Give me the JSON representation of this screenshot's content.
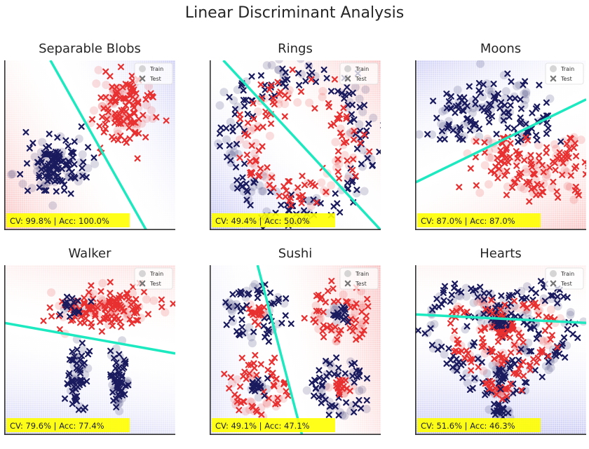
{
  "suptitle": "Linear Discriminant Analysis",
  "legend": {
    "train": "Train",
    "test": "Test"
  },
  "colors": {
    "class0": "#1a1a5e",
    "class1": "#e83030",
    "boundary": "#1de9c0",
    "region0": "#3a3ad8",
    "region1": "#f02a2a",
    "score_box": "#ffff00"
  },
  "chart_data": [
    {
      "type": "scatter",
      "title": "Separable Blobs",
      "score": "CV: 99.8% | Acc: 100.0%",
      "xlim": [
        0,
        1
      ],
      "ylim": [
        0,
        1
      ],
      "boundary": [
        [
          0.27,
          1.0
        ],
        [
          0.83,
          0.0
        ]
      ],
      "region_left": 0,
      "region_right": 1,
      "clusters": [
        {
          "shape": "blob",
          "class": 0,
          "cx": 0.3,
          "cy": 0.38,
          "rx": 0.19,
          "ry": 0.2,
          "n": 150
        },
        {
          "shape": "blob",
          "class": 1,
          "cx": 0.7,
          "cy": 0.73,
          "rx": 0.18,
          "ry": 0.2,
          "n": 150
        }
      ]
    },
    {
      "type": "scatter",
      "title": "Rings",
      "score": "CV: 49.4% | Acc: 50.0%",
      "xlim": [
        0,
        1
      ],
      "ylim": [
        0,
        1
      ],
      "boundary": [
        [
          0.08,
          1.0
        ],
        [
          1.0,
          0.0
        ]
      ],
      "region_left": 1,
      "region_right": 0,
      "clusters": [
        {
          "shape": "ring",
          "class": 0,
          "cx": 0.52,
          "cy": 0.52,
          "r": 0.41,
          "w": 0.05,
          "n": 200
        },
        {
          "shape": "ring",
          "class": 1,
          "cx": 0.52,
          "cy": 0.52,
          "r": 0.3,
          "w": 0.05,
          "n": 150
        }
      ]
    },
    {
      "type": "scatter",
      "title": "Moons",
      "score": "CV: 87.0% | Acc: 87.0%",
      "xlim": [
        0,
        1
      ],
      "ylim": [
        0,
        1
      ],
      "boundary": [
        [
          0.0,
          0.28
        ],
        [
          1.0,
          0.77
        ]
      ],
      "region_left": 0,
      "region_right": 1,
      "clusters": [
        {
          "shape": "arc",
          "class": 0,
          "cx": 0.45,
          "cy": 0.52,
          "r": 0.26,
          "w": 0.09,
          "a0": 0,
          "a1": 180,
          "n": 170
        },
        {
          "shape": "arc",
          "class": 1,
          "cx": 0.7,
          "cy": 0.55,
          "r": 0.26,
          "w": 0.09,
          "a0": 180,
          "a1": 360,
          "n": 170
        }
      ]
    },
    {
      "type": "scatter",
      "title": "Walker",
      "score": "CV: 79.6% | Acc: 77.4%",
      "xlim": [
        0,
        1
      ],
      "ylim": [
        0,
        1
      ],
      "boundary": [
        [
          0.0,
          0.66
        ],
        [
          1.0,
          0.48
        ]
      ],
      "region_left": 1,
      "region_right": 0,
      "clusters": [
        {
          "shape": "blob",
          "class": 1,
          "cx": 0.58,
          "cy": 0.74,
          "rx": 0.32,
          "ry": 0.13,
          "n": 170
        },
        {
          "shape": "blob",
          "class": 0,
          "cx": 0.43,
          "cy": 0.33,
          "rx": 0.06,
          "ry": 0.21,
          "n": 70
        },
        {
          "shape": "blob",
          "class": 0,
          "cx": 0.67,
          "cy": 0.33,
          "rx": 0.06,
          "ry": 0.21,
          "n": 70
        },
        {
          "shape": "blob",
          "class": 0,
          "cx": 0.4,
          "cy": 0.76,
          "rx": 0.1,
          "ry": 0.08,
          "n": 25
        }
      ]
    },
    {
      "type": "scatter",
      "title": "Sushi",
      "score": "CV: 49.1% | Acc: 47.1%",
      "xlim": [
        0,
        1
      ],
      "ylim": [
        0,
        1
      ],
      "boundary": [
        [
          0.28,
          1.0
        ],
        [
          0.54,
          0.0
        ]
      ],
      "region_left": 1,
      "region_right": 0,
      "clusters": [
        {
          "shape": "ring",
          "class": 0,
          "cx": 0.27,
          "cy": 0.72,
          "r": 0.13,
          "w": 0.035,
          "n": 70
        },
        {
          "shape": "blob",
          "class": 1,
          "cx": 0.27,
          "cy": 0.72,
          "rx": 0.06,
          "ry": 0.06,
          "n": 25
        },
        {
          "shape": "ring",
          "class": 1,
          "cx": 0.76,
          "cy": 0.72,
          "r": 0.13,
          "w": 0.035,
          "n": 70
        },
        {
          "shape": "blob",
          "class": 0,
          "cx": 0.76,
          "cy": 0.72,
          "rx": 0.06,
          "ry": 0.06,
          "n": 25
        },
        {
          "shape": "ring",
          "class": 1,
          "cx": 0.27,
          "cy": 0.28,
          "r": 0.13,
          "w": 0.035,
          "n": 70
        },
        {
          "shape": "blob",
          "class": 0,
          "cx": 0.27,
          "cy": 0.28,
          "rx": 0.06,
          "ry": 0.06,
          "n": 25
        },
        {
          "shape": "ring",
          "class": 0,
          "cx": 0.76,
          "cy": 0.28,
          "r": 0.13,
          "w": 0.035,
          "n": 70
        },
        {
          "shape": "blob",
          "class": 1,
          "cx": 0.76,
          "cy": 0.28,
          "rx": 0.06,
          "ry": 0.06,
          "n": 25
        }
      ]
    },
    {
      "type": "scatter",
      "title": "Hearts",
      "score": "CV: 51.6% | Acc: 46.3%",
      "xlim": [
        0,
        1
      ],
      "ylim": [
        0,
        1
      ],
      "boundary": [
        [
          0.0,
          0.71
        ],
        [
          1.0,
          0.66
        ]
      ],
      "region_left": 1,
      "region_right": 0,
      "clusters": [
        {
          "shape": "heart",
          "class": 0,
          "cx": 0.5,
          "cy": 0.55,
          "s": 0.43,
          "w": 0.03,
          "n": 210
        },
        {
          "shape": "heart",
          "class": 1,
          "cx": 0.5,
          "cy": 0.55,
          "s": 0.32,
          "w": 0.025,
          "n": 150
        },
        {
          "shape": "heart",
          "class": 0,
          "cx": 0.5,
          "cy": 0.55,
          "s": 0.22,
          "w": 0.02,
          "n": 100
        },
        {
          "shape": "heart",
          "class": 1,
          "cx": 0.5,
          "cy": 0.55,
          "s": 0.13,
          "w": 0.015,
          "n": 60
        }
      ]
    }
  ]
}
